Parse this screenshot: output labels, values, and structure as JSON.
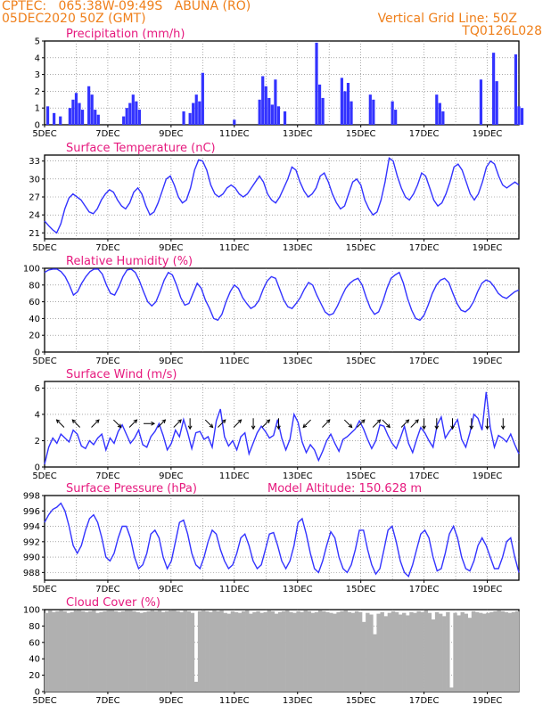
{
  "header": {
    "line1_left": "CPTEC:   065:38W-09:49S   ABUNA (RO)",
    "line2_left": "05DEC2020 50Z (GMT)",
    "line2_right": "Vertical Grid Line: 50Z",
    "line3_right": "TQ0126L028"
  },
  "colors": {
    "header": "#ef7f1a",
    "title": "#e6197e",
    "series": "#3333ff",
    "cloud": "#b0b0b0",
    "arrow": "#000000"
  },
  "chart_data": [
    {
      "type": "bar",
      "title": "Precipitation (mm/h)",
      "ylim": [
        0,
        5
      ],
      "yticks": [
        0,
        1,
        2,
        3,
        4,
        5
      ],
      "xticks": [
        "5DEC",
        "7DEC",
        "9DEC",
        "11DEC",
        "13DEC",
        "15DEC",
        "17DEC",
        "19DEC"
      ],
      "x_unit": "day offset from 5DEC 00Z",
      "bars": [
        [
          0.1,
          1.1
        ],
        [
          0.3,
          0.7
        ],
        [
          0.5,
          0.5
        ],
        [
          0.8,
          1.0
        ],
        [
          0.9,
          1.5
        ],
        [
          1.0,
          1.9
        ],
        [
          1.1,
          1.3
        ],
        [
          1.2,
          0.9
        ],
        [
          1.4,
          2.3
        ],
        [
          1.5,
          1.8
        ],
        [
          1.6,
          0.9
        ],
        [
          1.7,
          0.6
        ],
        [
          2.5,
          0.5
        ],
        [
          2.6,
          1.0
        ],
        [
          2.7,
          1.3
        ],
        [
          2.8,
          1.8
        ],
        [
          2.9,
          1.4
        ],
        [
          3.0,
          0.9
        ],
        [
          4.4,
          0.8
        ],
        [
          4.6,
          0.7
        ],
        [
          4.7,
          1.3
        ],
        [
          4.8,
          1.8
        ],
        [
          4.9,
          1.4
        ],
        [
          5.0,
          3.1
        ],
        [
          6.0,
          0.3
        ],
        [
          6.8,
          1.5
        ],
        [
          6.9,
          2.9
        ],
        [
          7.0,
          2.3
        ],
        [
          7.1,
          1.6
        ],
        [
          7.2,
          1.2
        ],
        [
          7.3,
          2.7
        ],
        [
          7.4,
          1.1
        ],
        [
          7.6,
          0.8
        ],
        [
          8.6,
          4.9
        ],
        [
          8.7,
          2.4
        ],
        [
          8.8,
          1.6
        ],
        [
          9.4,
          2.8
        ],
        [
          9.5,
          2.0
        ],
        [
          9.6,
          2.5
        ],
        [
          9.7,
          1.4
        ],
        [
          10.3,
          1.8
        ],
        [
          10.4,
          1.5
        ],
        [
          11.0,
          1.4
        ],
        [
          11.1,
          0.9
        ],
        [
          12.4,
          1.8
        ],
        [
          12.5,
          1.3
        ],
        [
          12.6,
          0.8
        ],
        [
          13.8,
          2.7
        ],
        [
          14.2,
          4.3
        ],
        [
          14.3,
          2.6
        ],
        [
          14.9,
          4.2
        ],
        [
          15.0,
          1.1
        ],
        [
          15.1,
          1.0
        ]
      ]
    },
    {
      "type": "line",
      "title": "Surface Temperature (nC)",
      "ylim": [
        20,
        34
      ],
      "yticks": [
        21,
        24,
        27,
        30,
        33
      ],
      "xticks": [
        "5DEC",
        "7DEC",
        "9DEC",
        "11DEC",
        "13DEC",
        "15DEC",
        "17DEC",
        "19DEC"
      ],
      "series": [
        {
          "name": "",
          "values": [
            23,
            22.2,
            21.5,
            21,
            22.5,
            25,
            26.8,
            27.5,
            27,
            26.5,
            25.5,
            24.5,
            24.2,
            25,
            26.5,
            27.5,
            28.2,
            27.8,
            26.5,
            25.5,
            25,
            26,
            27.8,
            28.5,
            27.5,
            25.5,
            24,
            24.5,
            26,
            28,
            30,
            30.5,
            29,
            27,
            26,
            26.5,
            28.5,
            31.5,
            33.2,
            33,
            31.5,
            29,
            27.5,
            27,
            27.5,
            28.5,
            29,
            28.5,
            27.5,
            27,
            27.5,
            28.5,
            29.5,
            30.5,
            29.5,
            27.5,
            26.5,
            26,
            27,
            28.5,
            30,
            32,
            31.5,
            29.5,
            28,
            27,
            27.5,
            28.5,
            30.5,
            31,
            29.5,
            27.5,
            26,
            25,
            25.5,
            27.5,
            29.5,
            30,
            29,
            26.5,
            25,
            24,
            24.5,
            26.5,
            29.5,
            33.5,
            33,
            30.5,
            28.5,
            27,
            26.5,
            27.5,
            29,
            31,
            30.5,
            28.5,
            26.5,
            25.5,
            26,
            27.5,
            29.5,
            32,
            32.5,
            31.5,
            29.5,
            27.5,
            26.5,
            27.5,
            29.5,
            32,
            33,
            32.5,
            30.5,
            29,
            28.5,
            29,
            29.5,
            29
          ]
        }
      ]
    },
    {
      "type": "line",
      "title": "Relative Humidity (%)",
      "ylim": [
        0,
        100
      ],
      "yticks": [
        0,
        20,
        40,
        60,
        80,
        100
      ],
      "xticks": [
        "5DEC",
        "7DEC",
        "9DEC",
        "11DEC",
        "13DEC",
        "15DEC",
        "17DEC",
        "19DEC"
      ],
      "series": [
        {
          "name": "",
          "values": [
            95,
            98,
            99,
            99,
            96,
            90,
            80,
            68,
            72,
            82,
            90,
            96,
            99,
            99,
            93,
            80,
            70,
            68,
            78,
            90,
            98,
            99,
            95,
            85,
            72,
            60,
            55,
            60,
            72,
            86,
            95,
            92,
            80,
            65,
            56,
            58,
            70,
            82,
            76,
            62,
            52,
            40,
            38,
            45,
            60,
            72,
            80,
            76,
            65,
            58,
            52,
            55,
            62,
            75,
            85,
            90,
            88,
            75,
            62,
            54,
            52,
            58,
            65,
            75,
            83,
            80,
            68,
            58,
            48,
            44,
            46,
            55,
            66,
            76,
            82,
            86,
            88,
            80,
            65,
            52,
            45,
            48,
            60,
            76,
            88,
            92,
            95,
            82,
            64,
            50,
            40,
            38,
            44,
            56,
            70,
            80,
            86,
            88,
            83,
            70,
            58,
            50,
            48,
            52,
            60,
            72,
            82,
            86,
            84,
            78,
            70,
            66,
            64,
            68,
            72,
            74
          ]
        }
      ]
    },
    {
      "type": "line",
      "title": "Surface Wind (m/s)",
      "ylim": [
        0,
        6.5
      ],
      "yticks": [
        0,
        2,
        4,
        6
      ],
      "xticks": [
        "5DEC",
        "7DEC",
        "9DEC",
        "11DEC",
        "13DEC",
        "15DEC",
        "17DEC",
        "19DEC"
      ],
      "series": [
        {
          "name": "",
          "values": [
            0.2,
            1.5,
            2.2,
            1.8,
            2.5,
            2.2,
            1.9,
            2.8,
            2.5,
            1.6,
            1.4,
            2.0,
            1.7,
            2.2,
            2.5,
            1.3,
            2.2,
            1.8,
            2.7,
            3.2,
            2.5,
            1.8,
            2.2,
            2.8,
            1.7,
            1.5,
            2.3,
            2.7,
            3.3,
            2.4,
            1.3,
            1.8,
            2.8,
            2.3,
            3.6,
            2.6,
            1.4,
            2.6,
            2.7,
            2.1,
            2.3,
            1.5,
            3.5,
            4.4,
            2.3,
            1.6,
            2.0,
            1.3,
            2.3,
            2.6,
            1.0,
            1.8,
            2.6,
            3.1,
            2.7,
            2.2,
            2.4,
            3.6,
            2.2,
            1.3,
            2.1,
            4.0,
            3.4,
            1.9,
            1.1,
            1.7,
            1.3,
            0.5,
            1.2,
            2.0,
            2.5,
            1.8,
            1.2,
            2.1,
            2.3,
            2.6,
            2.9,
            3.5,
            2.9,
            2.1,
            1.4,
            2.0,
            3.2,
            3.1,
            2.4,
            1.8,
            1.4,
            2.2,
            3.1,
            1.8,
            1.1,
            2.1,
            3.0,
            2.6,
            2.0,
            1.5,
            3.2,
            3.8,
            2.2,
            2.7,
            3.1,
            3.6,
            2.1,
            1.5,
            2.6,
            4.0,
            3.7,
            2.8,
            5.7,
            3.0,
            1.5,
            2.4,
            2.2,
            1.9,
            2.5,
            1.7,
            1.0
          ]
        }
      ],
      "wind_arrows": [
        {
          "t": 0.5,
          "dir": "nw"
        },
        {
          "t": 1.0,
          "dir": "nw"
        },
        {
          "t": 1.6,
          "dir": "ne"
        },
        {
          "t": 2.3,
          "dir": "se"
        },
        {
          "t": 2.8,
          "dir": "ne"
        },
        {
          "t": 3.3,
          "dir": "e"
        },
        {
          "t": 3.7,
          "dir": "ne"
        },
        {
          "t": 4.2,
          "dir": "ne"
        },
        {
          "t": 4.6,
          "dir": "s"
        },
        {
          "t": 5.2,
          "dir": "se"
        },
        {
          "t": 5.6,
          "dir": "ne"
        },
        {
          "t": 6.1,
          "dir": "ne"
        },
        {
          "t": 6.6,
          "dir": "s"
        },
        {
          "t": 7.0,
          "dir": "ne"
        },
        {
          "t": 7.4,
          "dir": "s"
        },
        {
          "t": 8.3,
          "dir": "sw"
        },
        {
          "t": 8.9,
          "dir": "ne"
        },
        {
          "t": 9.6,
          "dir": "se"
        },
        {
          "t": 10.0,
          "dir": "ne"
        },
        {
          "t": 10.5,
          "dir": "ne"
        },
        {
          "t": 10.8,
          "dir": "se"
        },
        {
          "t": 11.4,
          "dir": "ne"
        },
        {
          "t": 11.7,
          "dir": "ne"
        },
        {
          "t": 12.0,
          "dir": "s"
        },
        {
          "t": 12.4,
          "dir": "s"
        },
        {
          "t": 12.9,
          "dir": "s"
        },
        {
          "t": 13.5,
          "dir": "s"
        },
        {
          "t": 14.0,
          "dir": "s"
        },
        {
          "t": 14.5,
          "dir": "s"
        }
      ]
    },
    {
      "type": "line",
      "title": "Surface Pressure (hPa)",
      "ylim": [
        987,
        998
      ],
      "yticks": [
        988,
        990,
        992,
        994,
        996,
        998
      ],
      "xticks": [
        "5DEC",
        "7DEC",
        "9DEC",
        "11DEC",
        "13DEC",
        "15DEC",
        "17DEC",
        "19DEC"
      ],
      "annotation": "Model Altitude: 150.628  m",
      "series": [
        {
          "name": "",
          "values": [
            994.5,
            995.5,
            996.2,
            996.5,
            997,
            996,
            994,
            991.5,
            990.5,
            991.5,
            993.5,
            995,
            995.5,
            994.5,
            992.5,
            990,
            989.5,
            990.5,
            992.5,
            994,
            994,
            992.5,
            990,
            988.5,
            989,
            990.5,
            993,
            993.5,
            992.5,
            990,
            988.5,
            989.5,
            992,
            994.5,
            994.8,
            993,
            990.5,
            989,
            988.5,
            990,
            992,
            993.5,
            993,
            991,
            989.5,
            988.5,
            989,
            990.5,
            992.5,
            993,
            991.5,
            989.5,
            988.5,
            989,
            991,
            993,
            993.2,
            991.5,
            989.5,
            988.5,
            989.5,
            991.5,
            994.5,
            995,
            993,
            990.5,
            988.5,
            988,
            989.5,
            991.5,
            993.3,
            992.5,
            990,
            988.5,
            988,
            989,
            991,
            993.5,
            993.5,
            991,
            989,
            987.8,
            988.5,
            991,
            993.5,
            994,
            992,
            989.5,
            988,
            987.5,
            989,
            991,
            993,
            993.5,
            992.5,
            990,
            988.2,
            988.5,
            990.5,
            993,
            994,
            992.5,
            990,
            988.5,
            988.2,
            989.5,
            991.5,
            992.5,
            991.5,
            990,
            988.5,
            988.5,
            990,
            992,
            992.5,
            990,
            988
          ]
        }
      ]
    },
    {
      "type": "area",
      "title": "Cloud Cover (%)",
      "ylim": [
        0,
        100
      ],
      "yticks": [
        0,
        20,
        40,
        60,
        80,
        100
      ],
      "xticks": [
        "5DEC",
        "7DEC",
        "9DEC",
        "11DEC",
        "13DEC",
        "15DEC",
        "17DEC",
        "19DEC"
      ],
      "series": [
        {
          "name": "",
          "values": [
            96,
            99,
            97,
            98,
            99,
            98,
            96,
            97,
            99,
            99,
            98,
            97,
            98,
            99,
            96,
            97,
            98,
            99,
            99,
            98,
            97,
            98,
            99,
            99,
            98,
            97,
            96,
            97,
            98,
            99,
            98,
            99,
            97,
            98,
            99,
            99,
            98,
            97,
            99,
            98,
            96,
            12,
            98,
            99,
            98,
            97,
            99,
            98,
            99,
            96,
            95,
            98,
            97,
            96,
            98,
            99,
            95,
            97,
            98,
            96,
            97,
            99,
            98,
            95,
            97,
            98,
            99,
            97,
            96,
            98,
            97,
            99,
            98,
            96,
            97,
            99,
            98,
            97,
            96,
            95,
            97,
            98,
            99,
            97,
            96,
            98,
            97,
            85,
            96,
            94,
            70,
            95,
            97,
            92,
            96,
            98,
            97,
            94,
            96,
            93,
            97,
            96,
            98,
            97,
            99,
            96,
            88,
            97,
            95,
            92,
            97,
            5,
            96,
            93,
            97,
            95,
            90,
            98,
            97,
            96,
            95,
            96,
            97,
            98,
            99,
            98,
            97,
            96,
            97,
            98
          ]
        }
      ]
    }
  ]
}
